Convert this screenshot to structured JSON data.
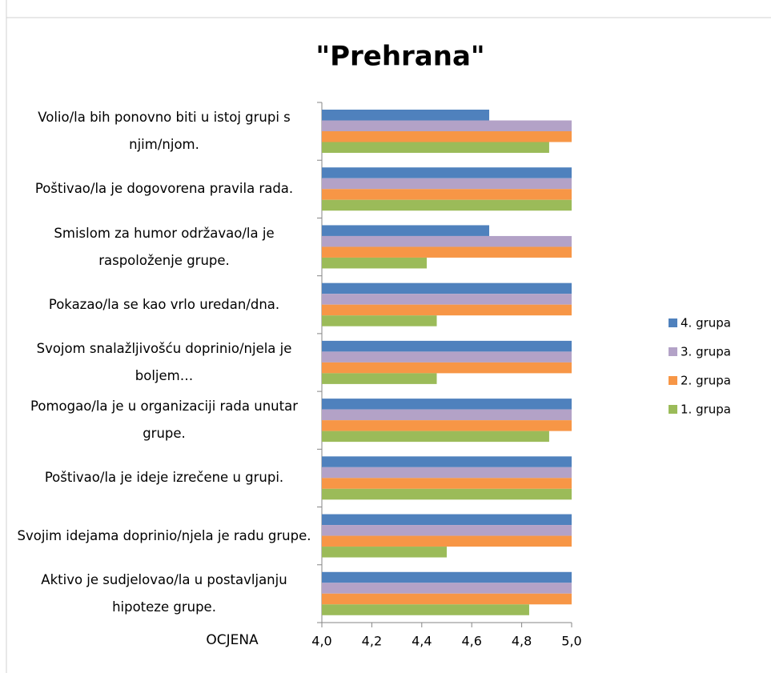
{
  "chart_data": {
    "type": "bar",
    "orientation": "horizontal",
    "title": "\"Prehrana\"",
    "ylabel": "OCJENA",
    "categories": [
      "Volio/la bih ponovno biti u istoj grupi s njim/njom.",
      "Poštivao/la je dogovorena pravila rada.",
      "Smislom za humor održavao/la je raspoloženje grupe.",
      "Pokazao/la se kao vrlo uredan/dna.",
      "Svojom snalažljivošću doprinio/njela je boljem…",
      "Pomogao/la je u organizaciji rada unutar grupe.",
      "Poštivao/la je ideje izrečene u grupi.",
      "Svojim idejama doprinio/njela je radu grupe.",
      "Aktivo je sudjelovao/la u postavljanju hipoteze grupe."
    ],
    "series": [
      {
        "name": "4. grupa",
        "color": "#4f81bd",
        "values": [
          4.67,
          5,
          4.67,
          5,
          5,
          5,
          5,
          5,
          5
        ]
      },
      {
        "name": "3. grupa",
        "color": "#b3a2c7",
        "values": [
          5,
          5,
          5,
          5,
          5,
          5,
          5,
          5,
          5
        ]
      },
      {
        "name": "2. grupa",
        "color": "#f79646",
        "values": [
          5,
          5,
          5,
          5,
          5,
          5,
          5,
          5,
          5
        ]
      },
      {
        "name": "1. grupa",
        "color": "#9bbb59",
        "values": [
          4.91,
          5,
          4.42,
          4.46,
          4.46,
          4.91,
          5,
          4.5,
          4.83
        ]
      }
    ],
    "xlim": [
      4,
      5
    ],
    "xticks": [
      {
        "value": 4,
        "label": "4,0"
      },
      {
        "value": 4.2,
        "label": "4,2"
      },
      {
        "value": 4.4,
        "label": "4,4"
      },
      {
        "value": 4.6,
        "label": "4,6"
      },
      {
        "value": 4.8,
        "label": "4,8"
      },
      {
        "value": 5,
        "label": "5,0"
      }
    ],
    "legend": "right"
  }
}
